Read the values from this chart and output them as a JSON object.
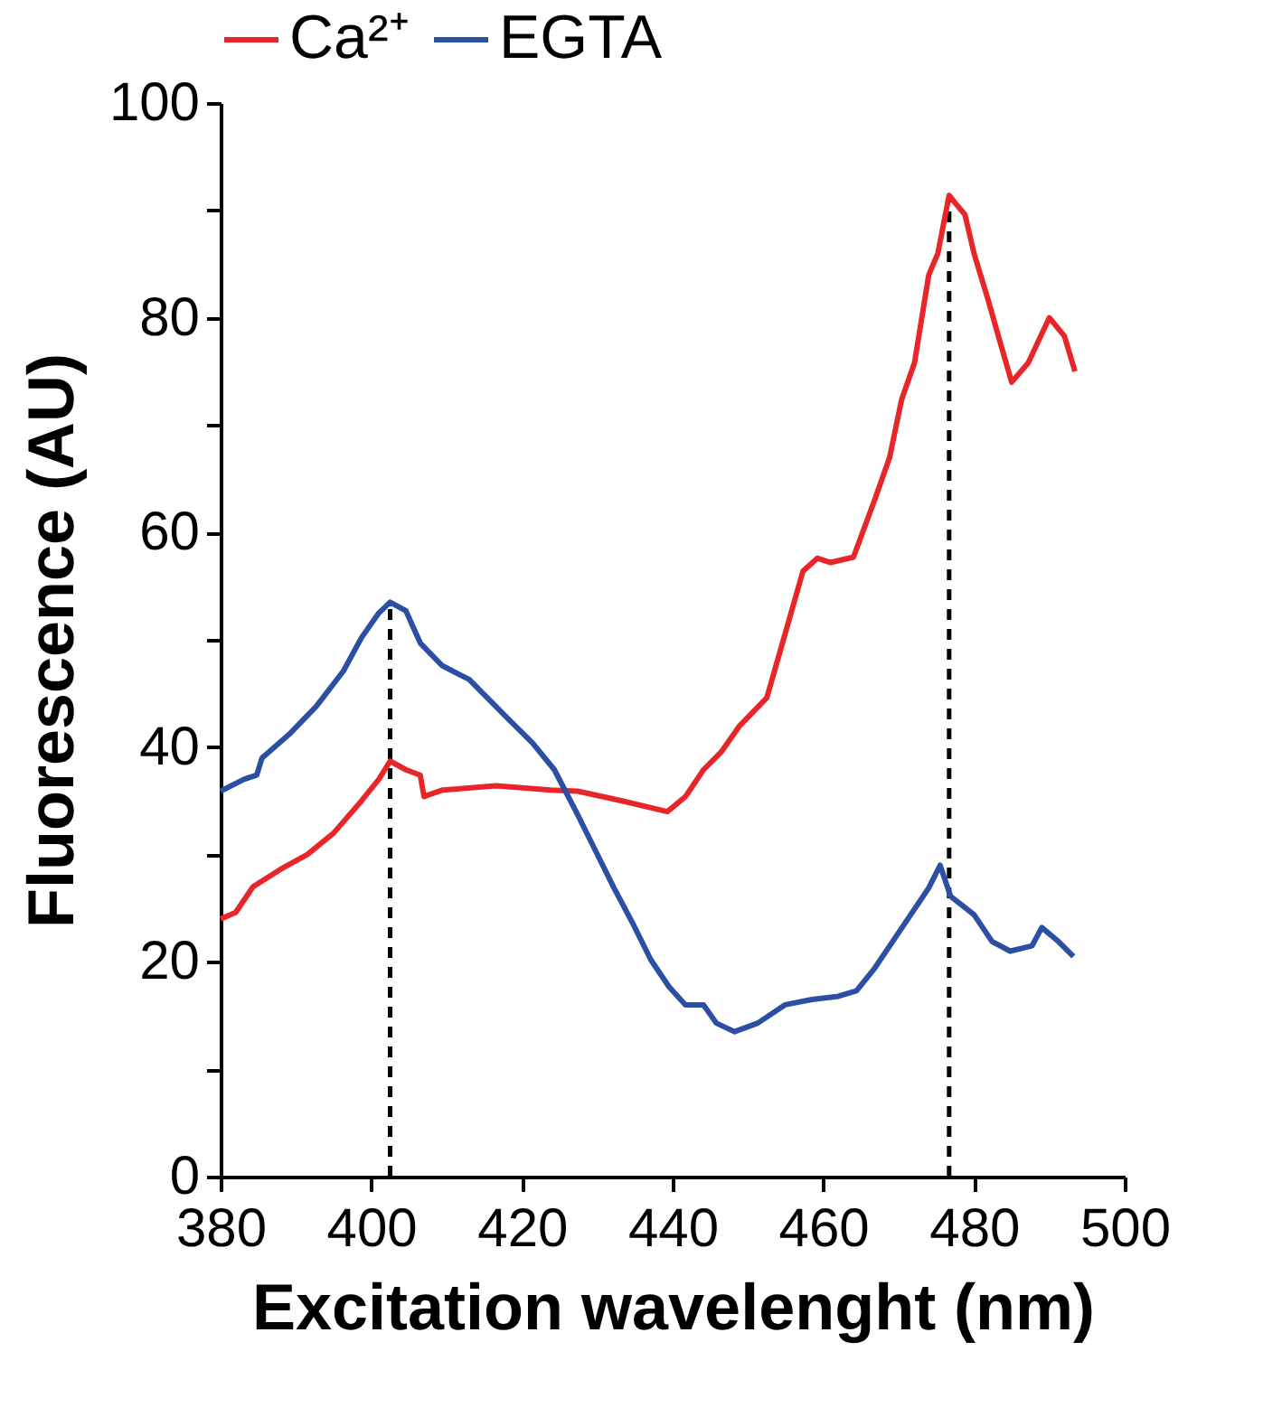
{
  "chart_data": {
    "type": "line",
    "xlabel": "Excitation wavelenght (nm)",
    "ylabel": "Fluorescence (AU)",
    "xlim": [
      380,
      500
    ],
    "xticks": [
      380,
      400,
      420,
      440,
      460,
      480,
      500
    ],
    "ylim": [
      0,
      100
    ],
    "yticks": [
      0,
      {
        "value": 10,
        "label": null
      },
      20,
      {
        "value": 30,
        "label": null
      },
      40,
      {
        "value": 50,
        "label": null
      },
      60,
      {
        "value": 70,
        "label": null
      },
      80,
      {
        "value": 90,
        "label": null
      },
      100
    ],
    "grid": false,
    "legend": "top",
    "marker": "none",
    "line_style": "solid",
    "series": [
      {
        "name": "Ca²⁺",
        "color": "#e8262a",
        "x": [
          380,
          382,
          384.3,
          387.9,
          391.5,
          395,
          398.7,
          401,
          402.5,
          404.6,
          406.5,
          407,
          409.4,
          416.6,
          423.8,
          427.4,
          433.3,
          439.3,
          441.7,
          444.1,
          446.5,
          448.9,
          452.5,
          454.9,
          457.3,
          459.2,
          460.9,
          464,
          466.8,
          468.8,
          470.4,
          472.1,
          474,
          475.2,
          476.7,
          477.6,
          478.8,
          480,
          481.9,
          483.6,
          485,
          487.2,
          490,
          492,
          493.4
        ],
        "values": [
          24,
          24.6,
          27,
          28.6,
          30,
          32,
          35,
          37,
          38.7,
          37.9,
          37.4,
          35.4,
          36,
          36.4,
          36,
          35.9,
          35,
          34,
          35.4,
          37.9,
          39.6,
          42,
          44.6,
          50.5,
          56.4,
          57.6,
          57.2,
          57.7,
          63,
          67,
          72.4,
          75.8,
          84,
          86,
          91.4,
          90.6,
          89.6,
          86,
          81.6,
          77.4,
          74,
          75.8,
          80,
          78.3,
          75
        ]
      },
      {
        "name": "EGTA",
        "color": "#2a4fa3",
        "x": [
          380,
          383.1,
          384.8,
          385.5,
          389.1,
          392.7,
          396.3,
          398.7,
          401,
          402.5,
          404.6,
          406.5,
          409.4,
          413,
          415.4,
          417.8,
          421.4,
          424.3,
          427.4,
          429.8,
          432.2,
          434.7,
          437.1,
          439.5,
          441.7,
          444.1,
          445.8,
          448.2,
          451.3,
          454.9,
          458.5,
          462,
          464.4,
          466.8,
          469.2,
          471.6,
          474,
          475.5,
          476.9,
          480,
          482.4,
          484.8,
          487.7,
          489,
          491.2,
          493.2
        ],
        "values": [
          35.9,
          37,
          37.4,
          39,
          41.2,
          43.8,
          47.1,
          50.2,
          52.5,
          53.5,
          52.7,
          49.7,
          47.6,
          46.3,
          44.6,
          42.9,
          40.4,
          37.9,
          33.7,
          30.3,
          26.9,
          23.6,
          20.2,
          17.7,
          16,
          16,
          14.3,
          13.5,
          14.3,
          16,
          16.5,
          16.8,
          17.3,
          19.4,
          21.9,
          24.4,
          26.9,
          29,
          26.1,
          24.4,
          21.9,
          21,
          21.5,
          23.2,
          21.9,
          20.5
        ]
      }
    ],
    "ref_lines": [
      {
        "axis": "x",
        "value": 402.5,
        "color": "#000000",
        "line_style": "dashed"
      },
      {
        "axis": "x",
        "value": 476.7,
        "color": "#000000",
        "line_style": "dashed"
      }
    ]
  }
}
